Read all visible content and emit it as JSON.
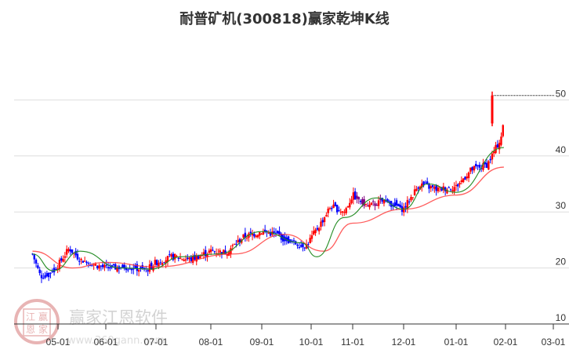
{
  "title": "耐普矿机(300818)赢家乾坤K线",
  "watermark": {
    "brand": "赢家江恩软件",
    "url": "www.360gann.com",
    "seal": [
      "江",
      "赢",
      "恩",
      "家"
    ]
  },
  "colors": {
    "up": "#ff0000",
    "down": "#0000ff",
    "neutral": "#800080",
    "ma_short": "#228b22",
    "ma_long": "#ff3333",
    "grid": "#dddddd",
    "axis": "#333333",
    "resistance": "#000000"
  },
  "chart_data": {
    "type": "candlestick",
    "title": "耐普矿机(300818)赢家乾坤K线",
    "xlabel": "",
    "ylabel": "",
    "ylim": [
      10,
      52
    ],
    "y_ticks": [
      10,
      20,
      30,
      40,
      50
    ],
    "x_ticks": [
      "05-01",
      "06-01",
      "07-01",
      "08-01",
      "09-01",
      "10-01",
      "11-01",
      "12-01",
      "01-01",
      "02-01",
      "03-01"
    ],
    "grid": true,
    "legend": "none",
    "resistance_line": {
      "price": 50.8,
      "from": "02-01",
      "style": "dotted"
    },
    "series": [
      {
        "name": "close",
        "approx_points": [
          {
            "date": "04-15",
            "price": 22.5
          },
          {
            "date": "04-20",
            "price": 18.5
          },
          {
            "date": "04-25",
            "price": 19.0
          },
          {
            "date": "05-01",
            "price": 20.5
          },
          {
            "date": "05-08",
            "price": 23.5
          },
          {
            "date": "05-15",
            "price": 21.5
          },
          {
            "date": "05-25",
            "price": 20.5
          },
          {
            "date": "06-01",
            "price": 20.0
          },
          {
            "date": "06-15",
            "price": 20.2
          },
          {
            "date": "06-25",
            "price": 19.6
          },
          {
            "date": "07-01",
            "price": 21.0
          },
          {
            "date": "07-10",
            "price": 22.0
          },
          {
            "date": "07-20",
            "price": 21.5
          },
          {
            "date": "08-01",
            "price": 23.0
          },
          {
            "date": "08-10",
            "price": 22.8
          },
          {
            "date": "08-20",
            "price": 25.5
          },
          {
            "date": "09-01",
            "price": 26.5
          },
          {
            "date": "09-10",
            "price": 26.0
          },
          {
            "date": "09-20",
            "price": 24.5
          },
          {
            "date": "09-28",
            "price": 24.0
          },
          {
            "date": "10-08",
            "price": 28.0
          },
          {
            "date": "10-15",
            "price": 31.0
          },
          {
            "date": "10-25",
            "price": 30.0
          },
          {
            "date": "11-01",
            "price": 33.0
          },
          {
            "date": "11-10",
            "price": 31.0
          },
          {
            "date": "11-20",
            "price": 32.0
          },
          {
            "date": "12-01",
            "price": 30.5
          },
          {
            "date": "12-10",
            "price": 35.0
          },
          {
            "date": "12-20",
            "price": 34.0
          },
          {
            "date": "01-01",
            "price": 34.5
          },
          {
            "date": "01-10",
            "price": 37.5
          },
          {
            "date": "01-20",
            "price": 38.5
          },
          {
            "date": "01-28",
            "price": 43.0
          },
          {
            "date": "01-30",
            "price": 46.0
          }
        ]
      },
      {
        "name": "short MA (green)",
        "approx_points": [
          {
            "date": "04-15",
            "price": 22.5
          },
          {
            "date": "04-28",
            "price": 19.5
          },
          {
            "date": "05-15",
            "price": 23.0
          },
          {
            "date": "06-10",
            "price": 20.0
          },
          {
            "date": "06-28",
            "price": 19.8
          },
          {
            "date": "07-15",
            "price": 22.0
          },
          {
            "date": "08-05",
            "price": 22.5
          },
          {
            "date": "09-01",
            "price": 26.5
          },
          {
            "date": "09-25",
            "price": 24.5
          },
          {
            "date": "10-05",
            "price": 22.0
          },
          {
            "date": "10-25",
            "price": 29.0
          },
          {
            "date": "11-15",
            "price": 32.5
          },
          {
            "date": "12-01",
            "price": 30.5
          },
          {
            "date": "12-15",
            "price": 35.0
          },
          {
            "date": "01-01",
            "price": 33.5
          },
          {
            "date": "01-30",
            "price": 41.5
          }
        ]
      },
      {
        "name": "long MA (red)",
        "approx_points": [
          {
            "date": "04-15",
            "price": 23.0
          },
          {
            "date": "05-10",
            "price": 20.0
          },
          {
            "date": "06-01",
            "price": 21.0
          },
          {
            "date": "07-01",
            "price": 20.2
          },
          {
            "date": "08-15",
            "price": 22.5
          },
          {
            "date": "09-15",
            "price": 26.0
          },
          {
            "date": "10-10",
            "price": 23.0
          },
          {
            "date": "11-01",
            "price": 28.0
          },
          {
            "date": "12-01",
            "price": 30.5
          },
          {
            "date": "01-01",
            "price": 33.0
          },
          {
            "date": "01-30",
            "price": 38.0
          }
        ]
      }
    ]
  }
}
